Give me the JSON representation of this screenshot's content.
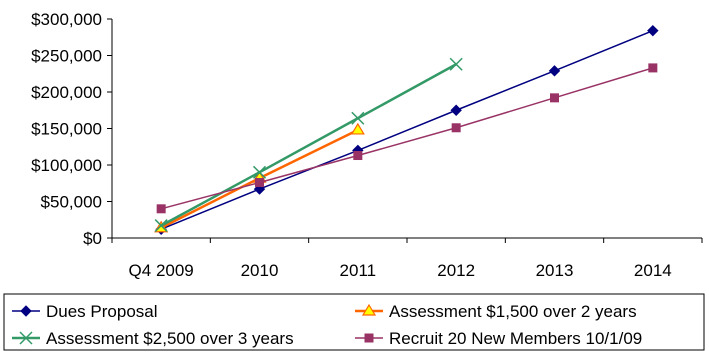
{
  "chart_data": {
    "type": "line",
    "title": "",
    "xlabel": "",
    "ylabel": "",
    "categories": [
      "Q4 2009",
      "2010",
      "2011",
      "2012",
      "2013",
      "2014"
    ],
    "ylim": [
      0,
      300000
    ],
    "yticks": [
      0,
      50000,
      100000,
      150000,
      200000,
      250000,
      300000
    ],
    "ytick_labels": [
      "$0",
      "$50,000",
      "$100,000",
      "$150,000",
      "$200,000",
      "$250,000",
      "$300,000"
    ],
    "grid": false,
    "legend_position": "bottom",
    "series": [
      {
        "name": "Dues Proposal",
        "color": "#000080",
        "marker": "diamond",
        "values": [
          12000,
          67000,
          120000,
          175000,
          229000,
          284000
        ]
      },
      {
        "name": "Assessment $1,500 over 2 years",
        "color": "#ff6600",
        "marker": "triangle",
        "values": [
          14000,
          82000,
          148000,
          null,
          null,
          null
        ]
      },
      {
        "name": "Assessment $2,500 over 3 years",
        "color": "#339966",
        "marker": "x",
        "values": [
          17000,
          90000,
          164000,
          238000,
          null,
          null
        ]
      },
      {
        "name": "Recruit 20 New Members 10/1/09",
        "color": "#993366",
        "marker": "square",
        "values": [
          40000,
          76000,
          113000,
          151000,
          192000,
          233000
        ]
      }
    ]
  }
}
